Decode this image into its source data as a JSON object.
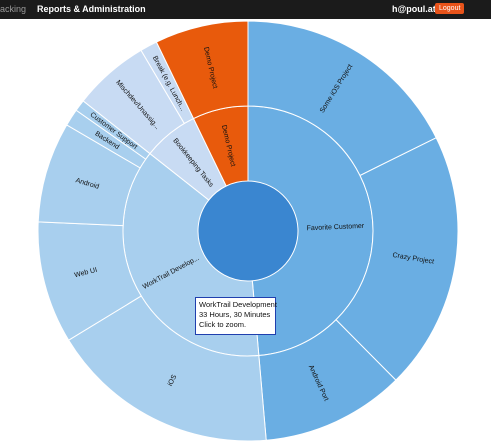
{
  "header": {
    "nav_tracking": "acking",
    "nav_reports": "Reports & Administration",
    "user_email": "h@poul.at",
    "logout_label": "Logout"
  },
  "tooltip": {
    "title": "WorkTrail Development",
    "duration": "33 Hours, 30 Minutes",
    "hint": "Click to zoom."
  },
  "colors": {
    "center": "#3a86d0",
    "favorite": "#6aaee3",
    "worktrail": "#a8cfee",
    "bookkeeping": "#c8dbf3",
    "demo": "#e85a0c"
  },
  "chart_data": {
    "type": "sunburst",
    "unit": "hours",
    "children": [
      {
        "name": "Favorite Customer",
        "value": 44,
        "color": "#6aaee3",
        "children": [
          {
            "name": "Some iOS Project",
            "value": 16,
            "color": "#6aaee3"
          },
          {
            "name": "Crazy Project",
            "value": 18,
            "color": "#6aaee3"
          },
          {
            "name": "Android Port",
            "value": 10,
            "color": "#6aaee3"
          }
        ]
      },
      {
        "name": "WorkTrail Develop...",
        "value": 33.5,
        "color": "#a8cfee",
        "children": [
          {
            "name": "iOS",
            "value": 16,
            "color": "#a8cfee"
          },
          {
            "name": "Web UI",
            "value": 8.5,
            "color": "#a8cfee"
          },
          {
            "name": "Android",
            "value": 7,
            "color": "#a8cfee"
          },
          {
            "name": "Backend",
            "value": 1.2,
            "color": "#a8cfee"
          },
          {
            "name": "Customer Support",
            "value": 0.8,
            "color": "#a8cfee"
          }
        ]
      },
      {
        "name": "Bookkeeping Tasks",
        "value": 6.5,
        "color": "#c8dbf3",
        "children": [
          {
            "name": "Mischdev/Unassig...",
            "value": 5.3,
            "color": "#c8dbf3"
          },
          {
            "name": "Break (e.g. Lunch...",
            "value": 1.2,
            "color": "#c8dbf3"
          }
        ]
      },
      {
        "name": "Demo Project",
        "value": 6.5,
        "color": "#e85a0c",
        "children": [
          {
            "name": "Demo Project",
            "value": 6.5,
            "color": "#e85a0c"
          }
        ]
      }
    ]
  }
}
